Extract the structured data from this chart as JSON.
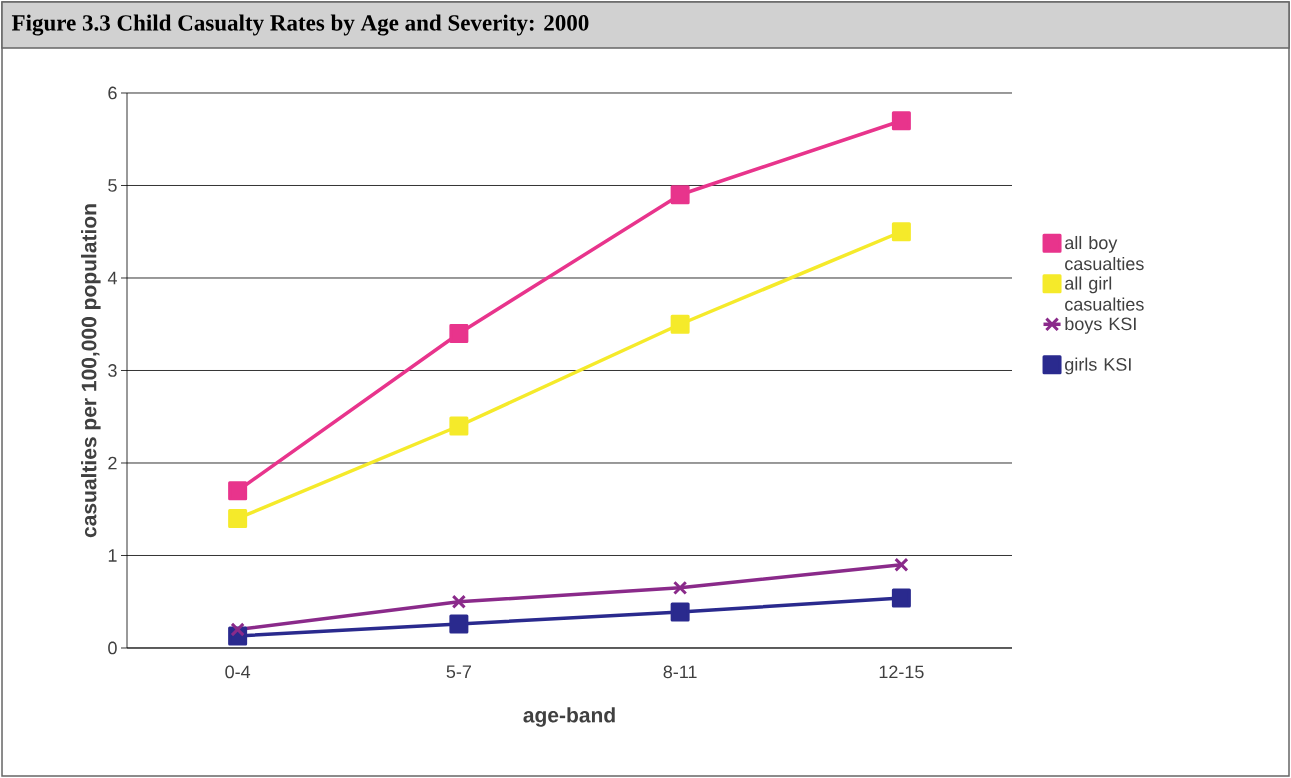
{
  "chart_data": {
    "type": "line",
    "title": "Figure 3.3 Child Casualty Rates by Age and Severity: 2000",
    "xlabel": "age-band",
    "ylabel": "casualties per 100,000 population",
    "categories": [
      "0-4",
      "5-7",
      "8-11",
      "12-15"
    ],
    "series": [
      {
        "name": "all boy casualties",
        "color": "#e8348c",
        "marker": "square",
        "values": [
          1.7,
          3.4,
          4.9,
          5.7
        ]
      },
      {
        "name": "all girl casualties",
        "color": "#f5ea2a",
        "marker": "square",
        "values": [
          1.4,
          2.4,
          3.5,
          4.5
        ]
      },
      {
        "name": "boys KSI",
        "color": "#8a2a8a",
        "marker": "cross",
        "values": [
          0.2,
          0.5,
          0.65,
          0.9
        ]
      },
      {
        "name": "girls KSI",
        "color": "#2a2a8e",
        "marker": "square",
        "values": [
          0.13,
          0.26,
          0.39,
          0.54
        ]
      }
    ],
    "ylim": [
      0,
      6
    ],
    "yticks": [
      0,
      1,
      2,
      3,
      4,
      5,
      6
    ],
    "grid": "y",
    "legend": "right",
    "line_style": "solid"
  }
}
